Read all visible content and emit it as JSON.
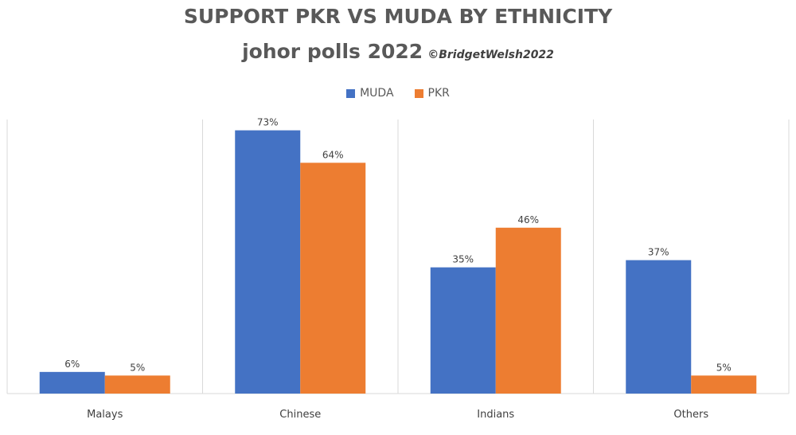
{
  "chart_data": {
    "type": "bar",
    "title": "SUPPORT PKR VS MUDA BY ETHNICITY",
    "subtitle": "johor polls 2022",
    "credit": "©BridgetWelsh2022",
    "categories": [
      "Malays",
      "Chinese",
      "Indians",
      "Others"
    ],
    "series": [
      {
        "name": "MUDA",
        "values": [
          6,
          73,
          35,
          37
        ],
        "labels": [
          "6%",
          "73%",
          "35%",
          "37%"
        ],
        "color": "#4472C4"
      },
      {
        "name": "PKR",
        "values": [
          5,
          64,
          46,
          5
        ],
        "labels": [
          "5%",
          "64%",
          "46%",
          "5%"
        ],
        "color": "#ED7D31"
      }
    ],
    "ylim": [
      0,
      76
    ],
    "legend": "top-center",
    "grid": "vertical separators"
  }
}
